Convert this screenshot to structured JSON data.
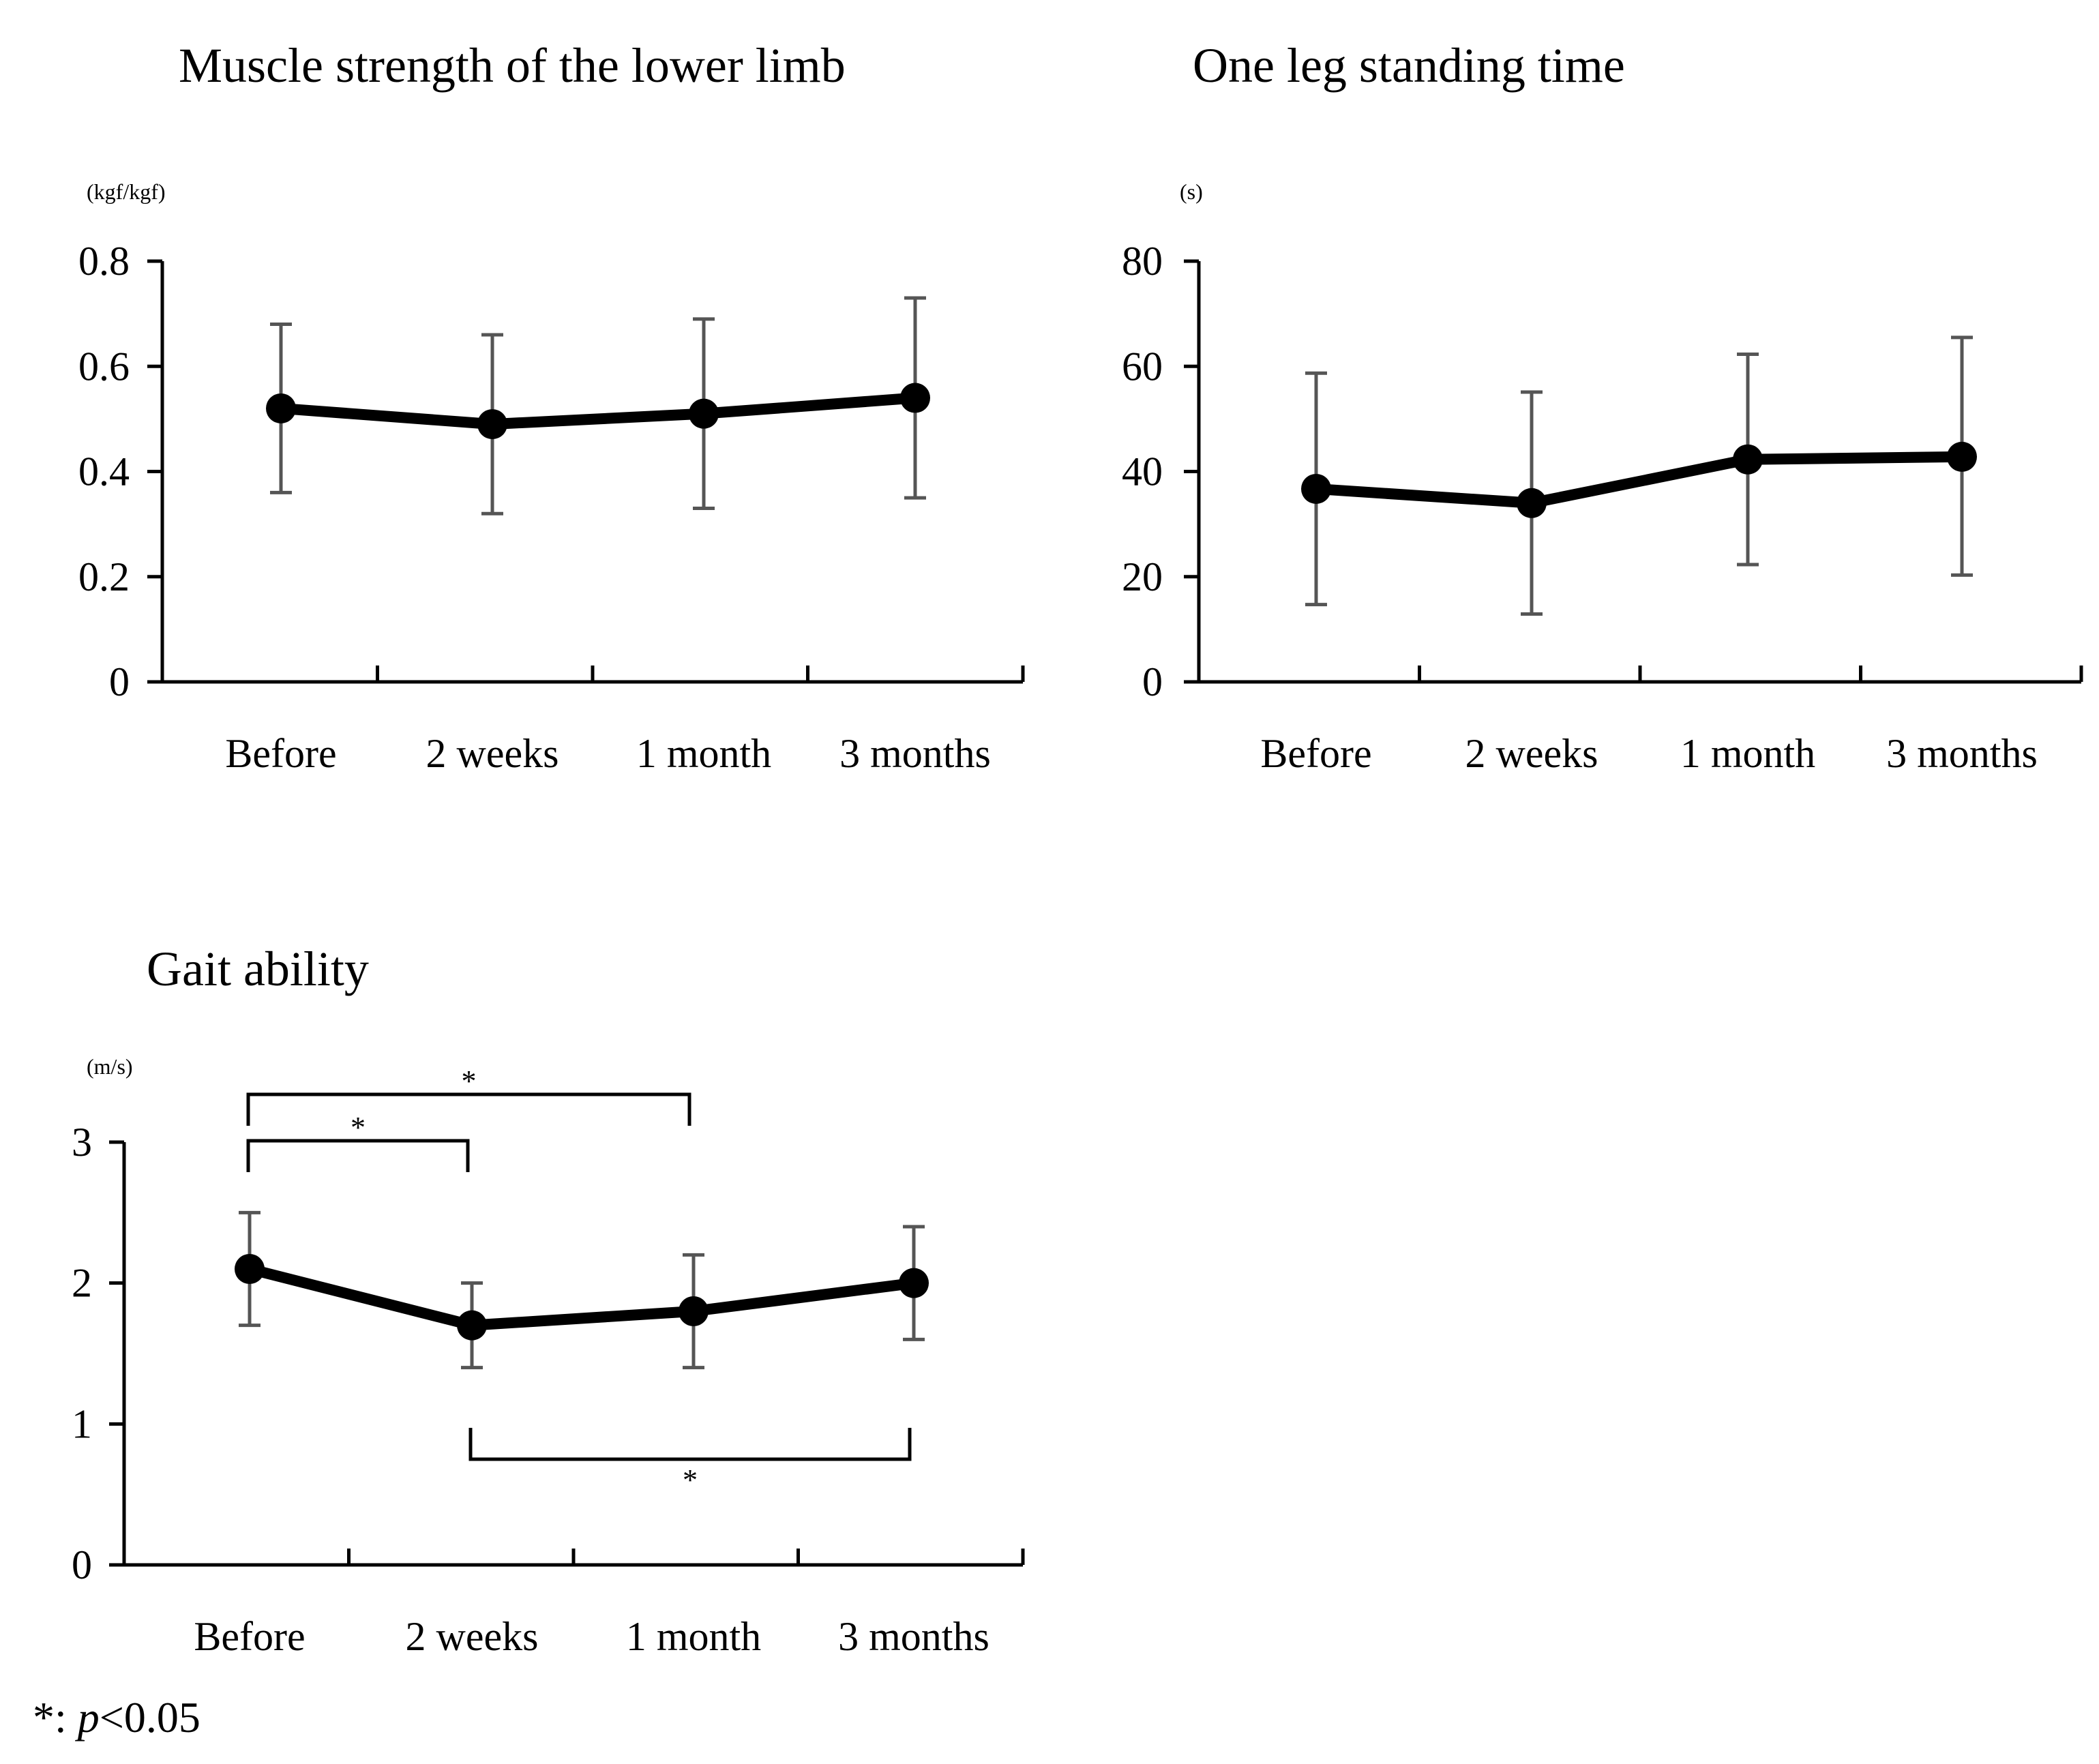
{
  "chart_data": [
    {
      "type": "line",
      "title": "Muscle strength of the lower limb",
      "ylabel": "(kgf/kgf)",
      "xlabel": "",
      "categories": [
        "Before",
        "2 weeks",
        "1 month",
        "3 months"
      ],
      "yticks": [
        "0",
        "0.2",
        "0.4",
        "0.6",
        "0.8"
      ],
      "ylim": [
        0,
        0.8
      ],
      "series": [
        {
          "name": "mean",
          "values": [
            0.52,
            0.49,
            0.51,
            0.54
          ],
          "error_low": [
            0.36,
            0.32,
            0.33,
            0.35
          ],
          "error_high": [
            0.68,
            0.66,
            0.69,
            0.73
          ]
        }
      ],
      "grid": false,
      "significance": []
    },
    {
      "type": "line",
      "title": "One leg standing time",
      "ylabel": "(s)",
      "xlabel": "",
      "categories": [
        "Before",
        "2 weeks",
        "1 month",
        "3 months"
      ],
      "yticks": [
        "0",
        "20",
        "40",
        "60",
        "80"
      ],
      "ylim": [
        0,
        80
      ],
      "series": [
        {
          "name": "mean",
          "values": [
            36.7,
            34.0,
            42.3,
            42.8
          ],
          "error_low": [
            14.7,
            12.9,
            22.3,
            20.3
          ],
          "error_high": [
            58.7,
            55.1,
            62.3,
            65.5
          ]
        }
      ],
      "grid": false,
      "significance": []
    },
    {
      "type": "line",
      "title": "Gait ability",
      "ylabel": "(m/s)",
      "xlabel": "",
      "categories": [
        "Before",
        "2 weeks",
        "1 month",
        "3 months"
      ],
      "yticks": [
        "0",
        "1",
        "2",
        "3"
      ],
      "ylim": [
        0,
        3
      ],
      "series": [
        {
          "name": "mean",
          "values": [
            2.1,
            1.7,
            1.8,
            2.0
          ],
          "error_low": [
            1.7,
            1.4,
            1.4,
            1.6
          ],
          "error_high": [
            2.5,
            2.0,
            2.2,
            2.4
          ]
        }
      ],
      "grid": false,
      "significance": [
        {
          "from": 0,
          "to": 2,
          "label": "*",
          "side": "above",
          "level": 2
        },
        {
          "from": 0,
          "to": 1,
          "label": "*",
          "side": "above",
          "level": 1
        },
        {
          "from": 1,
          "to": 3,
          "label": "*",
          "side": "below",
          "level": 1
        }
      ]
    }
  ],
  "footnote": {
    "star": "*",
    "colon": ": ",
    "p": "p",
    "rest": "<0.05"
  },
  "colors": {
    "line": "#000000",
    "error_bar": "#555555",
    "axis": "#000000",
    "background": "#ffffff"
  }
}
